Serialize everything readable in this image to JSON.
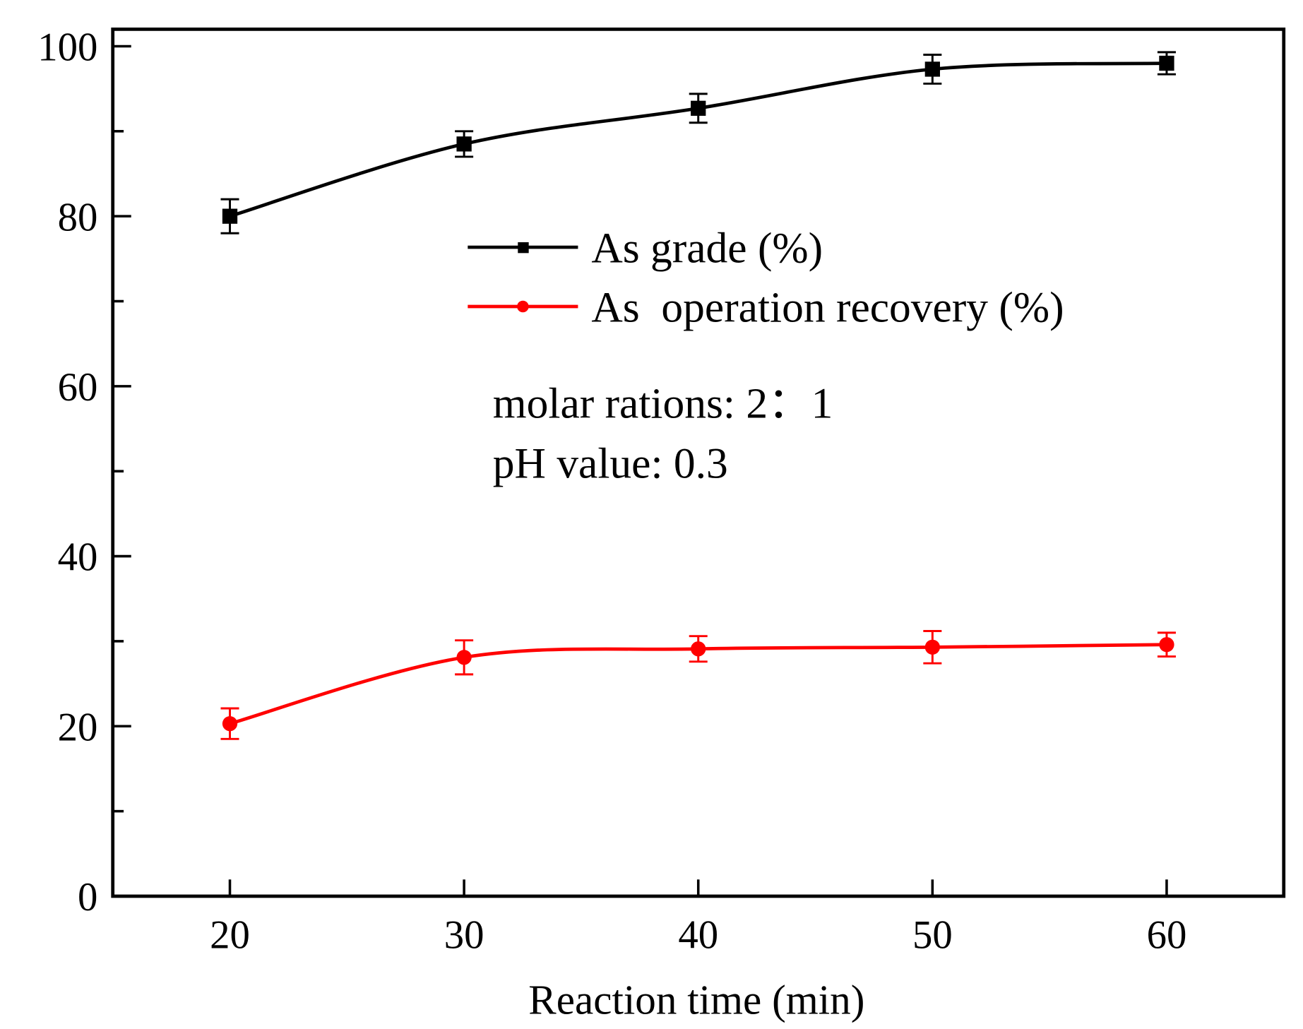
{
  "chart_data": {
    "type": "line",
    "title": "",
    "xlabel": "Reaction time (min)",
    "ylabel": "",
    "xlim": [
      15,
      65
    ],
    "ylim": [
      0,
      102
    ],
    "x_ticks": [
      20,
      30,
      40,
      50,
      60
    ],
    "x_tick_labels": [
      "20",
      "30",
      "40",
      "50",
      "60"
    ],
    "y_ticks": [
      0,
      20,
      40,
      60,
      80,
      100
    ],
    "y_tick_labels": [
      "0",
      "20",
      "40",
      "60",
      "80",
      "100"
    ],
    "y_minor_ticks": [
      10,
      30,
      50,
      70,
      90
    ],
    "grid": false,
    "legend_position": "upper-center",
    "x": [
      20,
      30,
      40,
      50,
      60
    ],
    "series": [
      {
        "name": "As grade (%)",
        "color": "#000000",
        "marker": "square",
        "values": [
          80.0,
          88.5,
          92.7,
          97.3,
          98.0
        ],
        "errors": [
          2.0,
          1.5,
          1.7,
          1.7,
          1.3
        ]
      },
      {
        "name": "As  operation recovery (%)",
        "color": "#ff0000",
        "marker": "circle",
        "values": [
          20.3,
          28.1,
          29.1,
          29.3,
          29.6
        ],
        "errors": [
          1.8,
          2.0,
          1.5,
          1.9,
          1.4
        ]
      }
    ],
    "annotations": [
      "molar rations: 2：1",
      "pH value: 0.3"
    ]
  }
}
